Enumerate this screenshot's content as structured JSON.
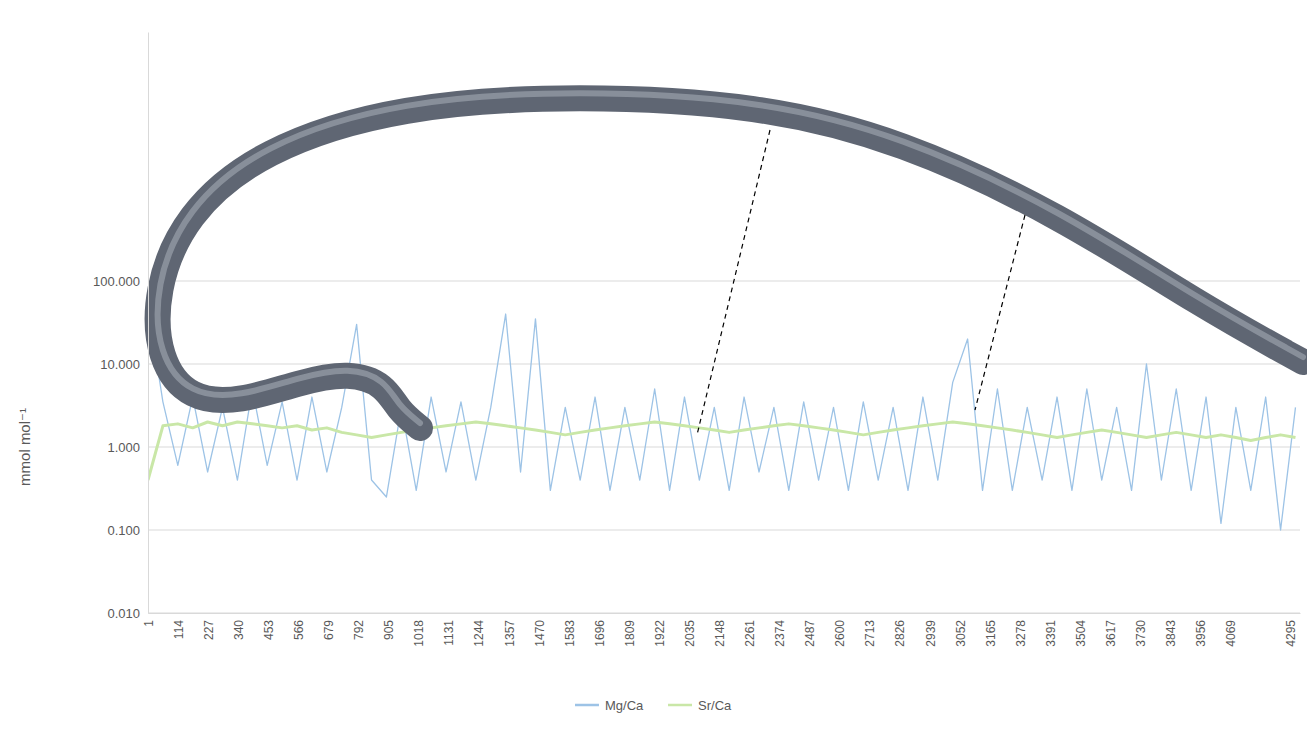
{
  "chart_data": {
    "type": "line",
    "y_label": "mmol mol⁻¹",
    "log": "y",
    "grid": true,
    "legend": "bottom",
    "x": [
      1,
      57,
      113,
      169,
      225,
      281,
      337,
      393,
      449,
      505,
      561,
      617,
      673,
      729,
      785,
      841,
      897,
      953,
      1009,
      1065,
      1121,
      1177,
      1233,
      1289,
      1345,
      1401,
      1457,
      1513,
      1569,
      1625,
      1681,
      1737,
      1793,
      1849,
      1905,
      1961,
      2017,
      2073,
      2129,
      2185,
      2241,
      2297,
      2353,
      2409,
      2465,
      2521,
      2577,
      2633,
      2689,
      2745,
      2801,
      2857,
      2913,
      2969,
      3025,
      3081,
      3137,
      3193,
      3249,
      3305,
      3361,
      3417,
      3473,
      3529,
      3585,
      3641,
      3697,
      3753,
      3809,
      3865,
      3921,
      3977,
      4033,
      4089,
      4145,
      4201,
      4257,
      4313
    ],
    "xlim": [
      1,
      4330
    ],
    "xticks": [
      1,
      114,
      227,
      340,
      453,
      566,
      679,
      792,
      905,
      1018,
      1131,
      1244,
      1357,
      1470,
      1583,
      1696,
      1809,
      1922,
      2035,
      2148,
      2261,
      2374,
      2487,
      2600,
      2713,
      2826,
      2939,
      3052,
      3165,
      3278,
      3391,
      3504,
      3617,
      3730,
      3843,
      3956,
      4069,
      4295
    ],
    "ylim": [
      0.01,
      100000
    ],
    "yticks": [
      {
        "value": 0.01,
        "label": "0.010"
      },
      {
        "value": 0.1,
        "label": "0.100"
      },
      {
        "value": 1,
        "label": "1.000"
      },
      {
        "value": 10,
        "label": "10.000"
      },
      {
        "value": 100,
        "label": "100.000"
      }
    ],
    "series": [
      {
        "name": "Mg/Ca",
        "color": "#9dc3e6",
        "values": [
          50,
          3.5,
          0.6,
          4,
          0.5,
          3,
          0.4,
          5,
          0.6,
          3.5,
          0.4,
          4,
          0.5,
          3,
          30,
          0.4,
          0.25,
          3,
          0.3,
          4,
          0.5,
          3.5,
          0.4,
          3,
          40,
          0.5,
          35,
          0.3,
          3,
          0.4,
          4,
          0.3,
          3,
          0.4,
          5,
          0.3,
          4,
          0.4,
          3,
          0.3,
          4,
          0.5,
          3,
          0.3,
          3.5,
          0.4,
          3,
          0.3,
          3.5,
          0.4,
          3,
          0.3,
          4,
          0.4,
          6,
          20,
          0.3,
          5,
          0.3,
          3,
          0.4,
          4,
          0.3,
          5,
          0.4,
          3,
          0.3,
          10,
          0.4,
          5,
          0.3,
          4,
          0.12,
          3,
          0.3,
          4,
          0.1,
          3
        ]
      },
      {
        "name": "Sr/Ca",
        "color": "#c9e7a7",
        "values": [
          0.4,
          1.8,
          1.9,
          1.7,
          2.0,
          1.8,
          2.0,
          1.9,
          1.8,
          1.7,
          1.8,
          1.6,
          1.7,
          1.5,
          1.4,
          1.3,
          1.4,
          1.5,
          1.6,
          1.7,
          1.8,
          1.9,
          2.0,
          1.9,
          1.8,
          1.7,
          1.6,
          1.5,
          1.4,
          1.5,
          1.6,
          1.7,
          1.8,
          1.9,
          2.0,
          1.9,
          1.8,
          1.7,
          1.6,
          1.5,
          1.6,
          1.7,
          1.8,
          1.9,
          1.8,
          1.7,
          1.6,
          1.5,
          1.4,
          1.5,
          1.6,
          1.7,
          1.8,
          1.9,
          2.0,
          1.9,
          1.8,
          1.7,
          1.6,
          1.5,
          1.4,
          1.3,
          1.4,
          1.5,
          1.6,
          1.5,
          1.4,
          1.3,
          1.4,
          1.5,
          1.4,
          1.3,
          1.4,
          1.3,
          1.2,
          1.3,
          1.4,
          1.3
        ]
      }
    ]
  }
}
